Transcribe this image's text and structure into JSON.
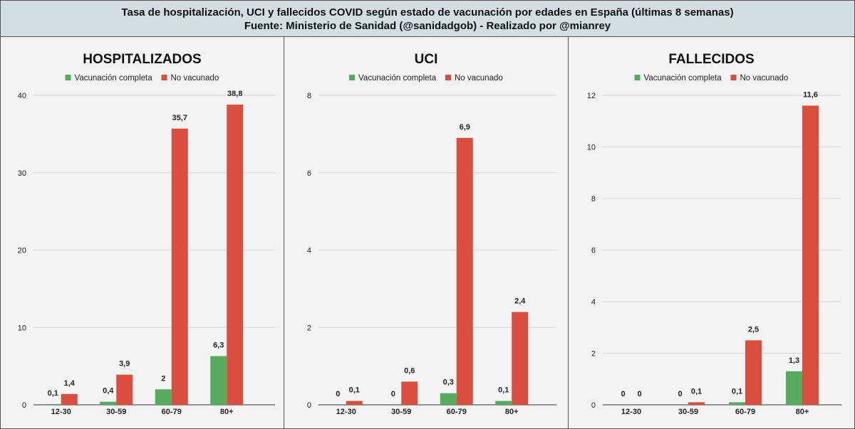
{
  "header": {
    "line1": "Tasa de hospitalización, UCI y fallecidos COVID según estado de vacunación por edades en España (últimas 8 semanas)",
    "line2": "Fuente: Ministerio de Sanidad (@sanidadgob) - Realizado por @mianrey"
  },
  "colors": {
    "vacunado": "#57ab5e",
    "no_vacunado": "#da4e40",
    "grid": "#d6d6d6",
    "panel_bg": "#f3f3f3"
  },
  "chart_data": [
    {
      "type": "bar",
      "title": "HOSPITALIZADOS",
      "categories": [
        "12-30",
        "30-59",
        "60-79",
        "80+"
      ],
      "series": [
        {
          "name": "Vacunación completa",
          "values": [
            0.1,
            0.4,
            2,
            6.3
          ],
          "labels": [
            "0,1",
            "0,4",
            "2",
            "6,3"
          ]
        },
        {
          "name": "No vacunado",
          "values": [
            1.4,
            3.9,
            35.7,
            38.8
          ],
          "labels": [
            "1,4",
            "3,9",
            "35,7",
            "38,8"
          ]
        }
      ],
      "ylim": [
        0,
        40
      ],
      "yticks": [
        0,
        10,
        20,
        30,
        40
      ],
      "ytick_labels": [
        "0",
        "10",
        "20",
        "30",
        "40"
      ],
      "legend": "top",
      "grid": true
    },
    {
      "type": "bar",
      "title": "UCI",
      "categories": [
        "12-30",
        "30-59",
        "60-79",
        "80+"
      ],
      "series": [
        {
          "name": "Vacunación completa",
          "values": [
            0,
            0,
            0.3,
            0.1
          ],
          "labels": [
            "0",
            "0",
            "0,3",
            "0,1"
          ]
        },
        {
          "name": "No vacunado",
          "values": [
            0.1,
            0.6,
            6.9,
            2.4
          ],
          "labels": [
            "0,1",
            "0,6",
            "6,9",
            "2,4"
          ]
        }
      ],
      "ylim": [
        0,
        8
      ],
      "yticks": [
        0,
        2,
        4,
        6,
        8
      ],
      "ytick_labels": [
        "0",
        "2",
        "4",
        "6",
        "8"
      ],
      "legend": "top",
      "grid": true
    },
    {
      "type": "bar",
      "title": "FALLECIDOS",
      "categories": [
        "12-30",
        "30-59",
        "60-79",
        "80+"
      ],
      "series": [
        {
          "name": "Vacunación completa",
          "values": [
            0,
            0,
            0.1,
            1.3
          ],
          "labels": [
            "0",
            "0",
            "0,1",
            "1,3"
          ]
        },
        {
          "name": "No vacunado",
          "values": [
            0,
            0.1,
            2.5,
            11.6
          ],
          "labels": [
            "0",
            "0,1",
            "2,5",
            "11,6"
          ]
        }
      ],
      "ylim": [
        0,
        12
      ],
      "yticks": [
        0,
        2,
        4,
        6,
        8,
        10,
        12
      ],
      "ytick_labels": [
        "0",
        "2",
        "4",
        "6",
        "8",
        "10",
        "12"
      ],
      "legend": "top",
      "grid": true
    }
  ]
}
